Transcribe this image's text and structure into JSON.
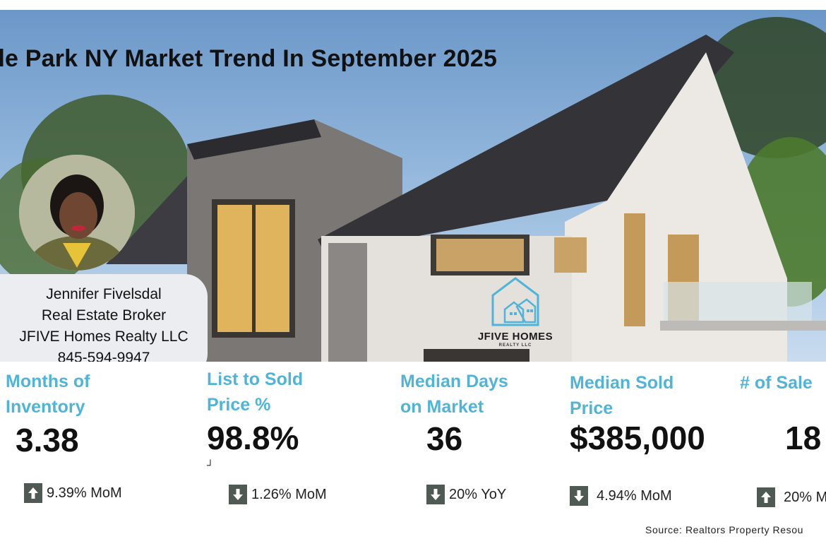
{
  "headline": "de Park NY Market Trend In September 2025",
  "agent": {
    "name": "Jennifer Fivelsdal",
    "role": "Real Estate Broker",
    "company": "JFIVE Homes Realty LLC",
    "phone": "845-594-9947"
  },
  "logo": {
    "name": "JFIVE HOMES",
    "sub": "REALTY LLC"
  },
  "stats": [
    {
      "label_line1": "Months of",
      "label_line2": "Inventory",
      "value": "3.38",
      "change": "9.39% MoM",
      "direction": "up"
    },
    {
      "label_line1": "List to Sold",
      "label_line2": "Price %",
      "value": "98.8%",
      "mark": "┘",
      "change": "1.26% MoM",
      "direction": "down"
    },
    {
      "label_line1": "Median Days",
      "label_line2": "on Market",
      "value": "36",
      "change": "20% YoY",
      "direction": "down"
    },
    {
      "label_line1": "Median Sold",
      "label_line2": "Price",
      "value": "$385,000",
      "change": "4.94% MoM",
      "direction": "down"
    },
    {
      "label_line1": "# of Sale",
      "value": "18",
      "change": "20% M",
      "direction": "up"
    }
  ],
  "source": "Source: Realtors Property Resou",
  "colors": {
    "accent": "#4fb4d8",
    "arrow_box": "#4f5a55",
    "card": "#ecedf0"
  }
}
